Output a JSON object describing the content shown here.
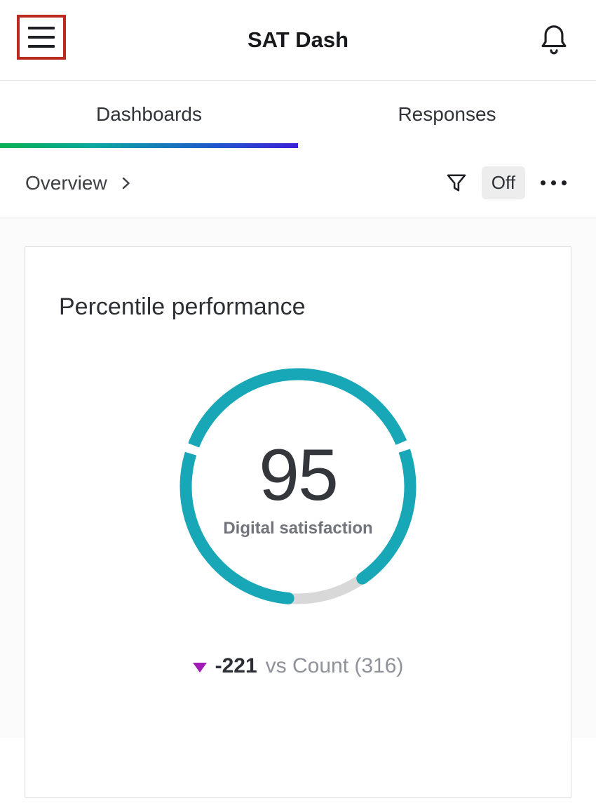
{
  "header": {
    "title": "SAT Dash"
  },
  "tabs": [
    {
      "label": "Dashboards",
      "active": true
    },
    {
      "label": "Responses",
      "active": false
    }
  ],
  "toolbar": {
    "breadcrumb": "Overview",
    "filter_state": "Off"
  },
  "card": {
    "title": "Percentile performance"
  },
  "chart_data": {
    "type": "gauge",
    "title": "Percentile performance",
    "value": 95,
    "max": 100,
    "label": "Digital satisfaction",
    "delta": "-221",
    "delta_direction": "down",
    "comparison": "vs Count (316)",
    "ring_color": "#17a7b7",
    "track_color": "#d8d8d8",
    "arc_start_deg": 95,
    "arc_sweep_deg": 320,
    "separators_deg": [
      197,
      337
    ]
  },
  "colors": {
    "accent_teal": "#17a7b7",
    "delta_purple": "#a01cb5",
    "annotation_red": "#ba2a1f",
    "tab_gradient": [
      "#07b153",
      "#0aa79f",
      "#2158cc",
      "#3b20d8"
    ]
  }
}
